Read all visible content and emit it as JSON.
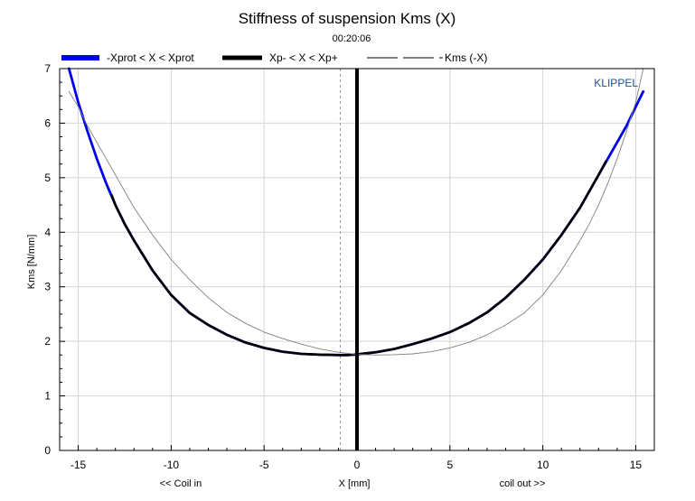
{
  "chart_data": {
    "type": "line",
    "title": "Stiffness of suspension Kms (X)",
    "subtitle": "00:20:06",
    "xlabel": "X [mm]",
    "ylabel": "Kms [N/mm]",
    "xlabel_left": "<< Coil in",
    "xlabel_right": "coil out >>",
    "watermark": "KLIPPEL",
    "xlim": [
      -16,
      16
    ],
    "ylim": [
      0,
      7
    ],
    "xticks": [
      -15,
      -10,
      -5,
      0,
      5,
      10,
      15
    ],
    "yticks": [
      0,
      1,
      2,
      3,
      4,
      5,
      6,
      7
    ],
    "grid": true,
    "legend_position": "top",
    "marker_line_x": 0,
    "dashed_line_x": -0.9,
    "colors": {
      "blue": "#0000ee",
      "black": "#000000",
      "gray": "#808080",
      "grid": "#d4d4d4"
    },
    "series": [
      {
        "name": "-Xprot < X < Xprot",
        "color": "#0000ee",
        "x": [
          -15.5,
          -15,
          -14.5,
          -14,
          -13.5,
          -13,
          -12.5,
          -12,
          -11,
          -10,
          -9,
          -8,
          -7,
          -6,
          -5,
          -4,
          -3,
          -2,
          -1,
          -0.5,
          0,
          1,
          2,
          3,
          4,
          5,
          6,
          7,
          8,
          9,
          10,
          11,
          12,
          12.5,
          13,
          13.5,
          14,
          14.5,
          15,
          15.4
        ],
        "y": [
          7.0,
          6.38,
          5.85,
          5.35,
          4.9,
          4.5,
          4.15,
          3.85,
          3.3,
          2.85,
          2.52,
          2.3,
          2.12,
          1.98,
          1.88,
          1.81,
          1.77,
          1.755,
          1.75,
          1.75,
          1.76,
          1.8,
          1.86,
          1.95,
          2.05,
          2.17,
          2.33,
          2.53,
          2.8,
          3.13,
          3.5,
          3.95,
          4.45,
          4.75,
          5.05,
          5.35,
          5.65,
          5.95,
          6.3,
          6.58
        ]
      },
      {
        "name": "Xp- < X < Xp+",
        "color": "#000000",
        "x": [
          -13.2,
          -13,
          -12.5,
          -12,
          -11,
          -10,
          -9,
          -8,
          -7,
          -6,
          -5,
          -4,
          -3,
          -2,
          -1,
          -0.5,
          0,
          1,
          2,
          3,
          4,
          5,
          6,
          7,
          8,
          9,
          10,
          11,
          12,
          12.5,
          13,
          13.4
        ],
        "y": [
          4.68,
          4.5,
          4.15,
          3.85,
          3.3,
          2.85,
          2.52,
          2.3,
          2.12,
          1.98,
          1.88,
          1.81,
          1.77,
          1.755,
          1.75,
          1.75,
          1.76,
          1.8,
          1.86,
          1.95,
          2.05,
          2.17,
          2.33,
          2.53,
          2.8,
          3.13,
          3.5,
          3.95,
          4.45,
          4.75,
          5.05,
          5.3
        ]
      },
      {
        "name": "Kms (-X)",
        "color": "#808080",
        "x": [
          -15.5,
          -15,
          -14.5,
          -14,
          -13.5,
          -13,
          -12.5,
          -12,
          -11,
          -10,
          -9,
          -8,
          -7,
          -6,
          -5,
          -4,
          -3,
          -2,
          -1,
          0,
          1,
          2,
          3,
          4,
          5,
          6,
          7,
          8,
          9,
          10,
          11,
          12,
          12.5,
          13,
          13.5,
          14,
          14.5,
          15,
          15.4
        ],
        "y": [
          6.58,
          6.3,
          5.95,
          5.65,
          5.35,
          5.05,
          4.75,
          4.45,
          3.95,
          3.5,
          3.13,
          2.8,
          2.53,
          2.33,
          2.17,
          2.05,
          1.95,
          1.86,
          1.8,
          1.76,
          1.75,
          1.755,
          1.77,
          1.81,
          1.88,
          1.98,
          2.12,
          2.3,
          2.52,
          2.85,
          3.3,
          3.85,
          4.15,
          4.5,
          4.9,
          5.35,
          5.85,
          6.38,
          7.0
        ]
      }
    ]
  }
}
